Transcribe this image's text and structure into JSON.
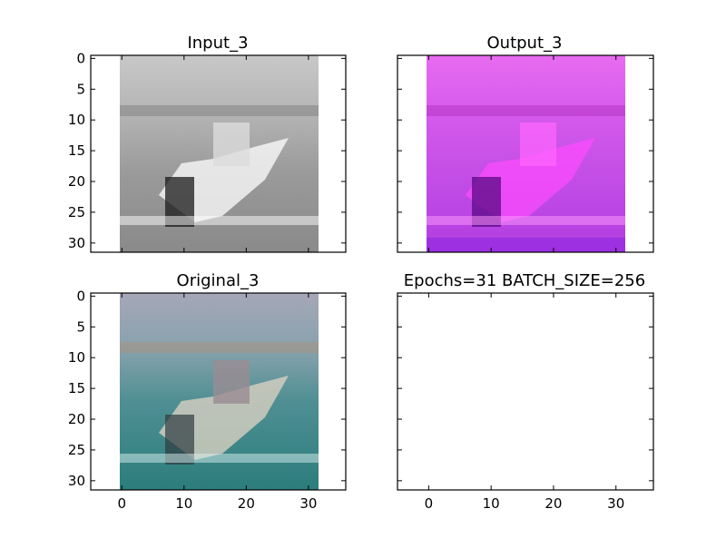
{
  "figure": {
    "panels": [
      {
        "id": "input",
        "title": "Input_3",
        "palette": "gray",
        "show_x_ticks": false,
        "show_y_ticks": true
      },
      {
        "id": "output",
        "title": "Output_3",
        "palette": "magenta",
        "show_x_ticks": false,
        "show_y_ticks": false
      },
      {
        "id": "original",
        "title": "Original_3",
        "palette": "color",
        "show_x_ticks": true,
        "show_y_ticks": true
      },
      {
        "id": "empty",
        "title": "Epochs=31 BATCH_SIZE=256",
        "palette": "none",
        "show_x_ticks": true,
        "show_y_ticks": false
      }
    ]
  },
  "chart_data": [
    {
      "type": "heatmap",
      "title": "Input_3",
      "image_size": [
        32,
        32
      ],
      "xlim": [
        -5,
        36
      ],
      "ylim": [
        31.5,
        -0.5
      ],
      "x_ticks": [
        0,
        10,
        20,
        30
      ],
      "y_ticks": [
        0,
        5,
        10,
        15,
        20,
        25,
        30
      ],
      "xlabel": "",
      "ylabel": "",
      "colormap": "gray",
      "description": "grayscale boat on water"
    },
    {
      "type": "heatmap",
      "title": "Output_3",
      "image_size": [
        32,
        32
      ],
      "xlim": [
        -5,
        36
      ],
      "ylim": [
        31.5,
        -0.5
      ],
      "x_ticks": [
        0,
        10,
        20,
        30
      ],
      "y_ticks": [
        0,
        5,
        10,
        15,
        20,
        25,
        30
      ],
      "xlabel": "",
      "ylabel": "",
      "colormap": "magenta",
      "description": "magenta/purple reconstructed boat"
    },
    {
      "type": "heatmap",
      "title": "Original_3",
      "image_size": [
        32,
        32
      ],
      "xlim": [
        -5,
        36
      ],
      "ylim": [
        31.5,
        -0.5
      ],
      "x_ticks": [
        0,
        10,
        20,
        30
      ],
      "y_ticks": [
        0,
        5,
        10,
        15,
        20,
        25,
        30
      ],
      "xlabel": "",
      "ylabel": "",
      "colormap": "color",
      "description": "teal water with boat"
    },
    {
      "type": "heatmap",
      "title": "Epochs=31 BATCH_SIZE=256",
      "image_size": [
        0,
        0
      ],
      "xlim": [
        -5,
        36
      ],
      "ylim": [
        31.5,
        -0.5
      ],
      "x_ticks": [
        0,
        10,
        20,
        30
      ],
      "y_ticks": [],
      "xlabel": "",
      "ylabel": "",
      "colormap": "none",
      "description": "empty axes"
    }
  ]
}
